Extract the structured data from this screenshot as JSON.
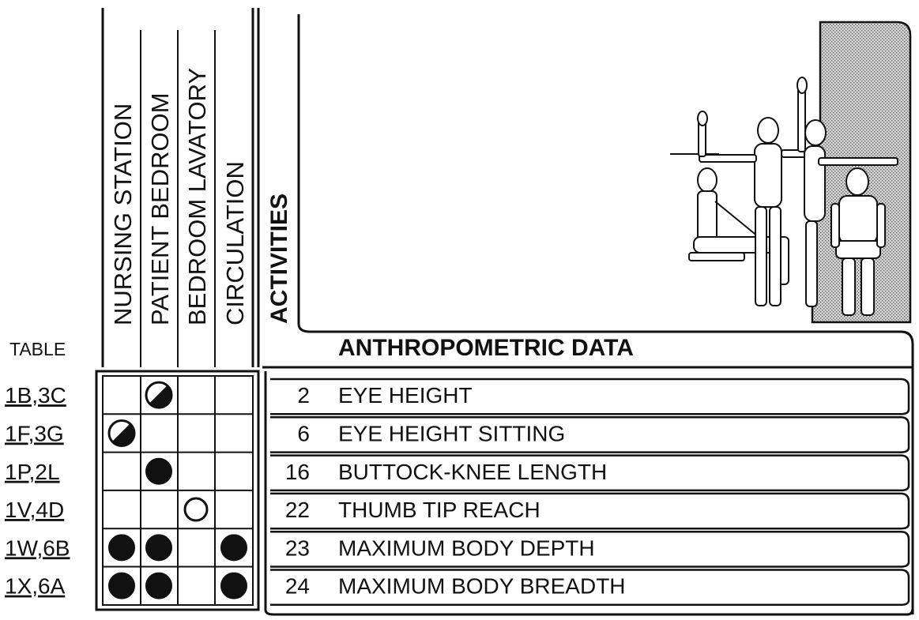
{
  "header": {
    "table_label": "TABLE",
    "activities_label": "ACTIVITIES",
    "title": "ANTHROPOMETRIC DATA"
  },
  "columns": [
    "NURSING STATION",
    "PATIENT BEDROOM",
    "BEDROOM LAVATORY",
    "CIRCULATION"
  ],
  "rows": [
    {
      "table": "1B,3C",
      "num": "2",
      "name": "EYE HEIGHT",
      "marks": [
        "none",
        "half",
        "none",
        "none"
      ]
    },
    {
      "table": "1F,3G",
      "num": "6",
      "name": "EYE HEIGHT SITTING",
      "marks": [
        "half",
        "none",
        "none",
        "none"
      ]
    },
    {
      "table": "1P,2L",
      "num": "16",
      "name": "BUTTOCK-KNEE LENGTH",
      "marks": [
        "none",
        "full",
        "none",
        "none"
      ]
    },
    {
      "table": "1V,4D",
      "num": "22",
      "name": "THUMB TIP REACH",
      "marks": [
        "none",
        "none",
        "empty",
        "none"
      ]
    },
    {
      "table": "1W,6B",
      "num": "23",
      "name": "MAXIMUM BODY DEPTH",
      "marks": [
        "full",
        "full",
        "none",
        "full"
      ]
    },
    {
      "table": "1X,6A",
      "num": "24",
      "name": "MAXIMUM BODY BREADTH",
      "marks": [
        "full",
        "full",
        "none",
        "full"
      ]
    }
  ],
  "figure": {
    "icon": "human-figures-anthropometric-illustration",
    "shade_color": "#9a9a9a"
  }
}
